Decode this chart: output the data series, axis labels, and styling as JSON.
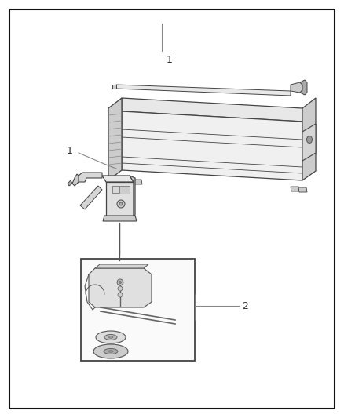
{
  "bg_color": "#ffffff",
  "border_color": "#111111",
  "line_color": "#444444",
  "gray_light": "#e8e8e8",
  "gray_mid": "#cccccc",
  "gray_dark": "#aaaaaa",
  "gray_darker": "#888888",
  "gray_outline": "#555555"
}
